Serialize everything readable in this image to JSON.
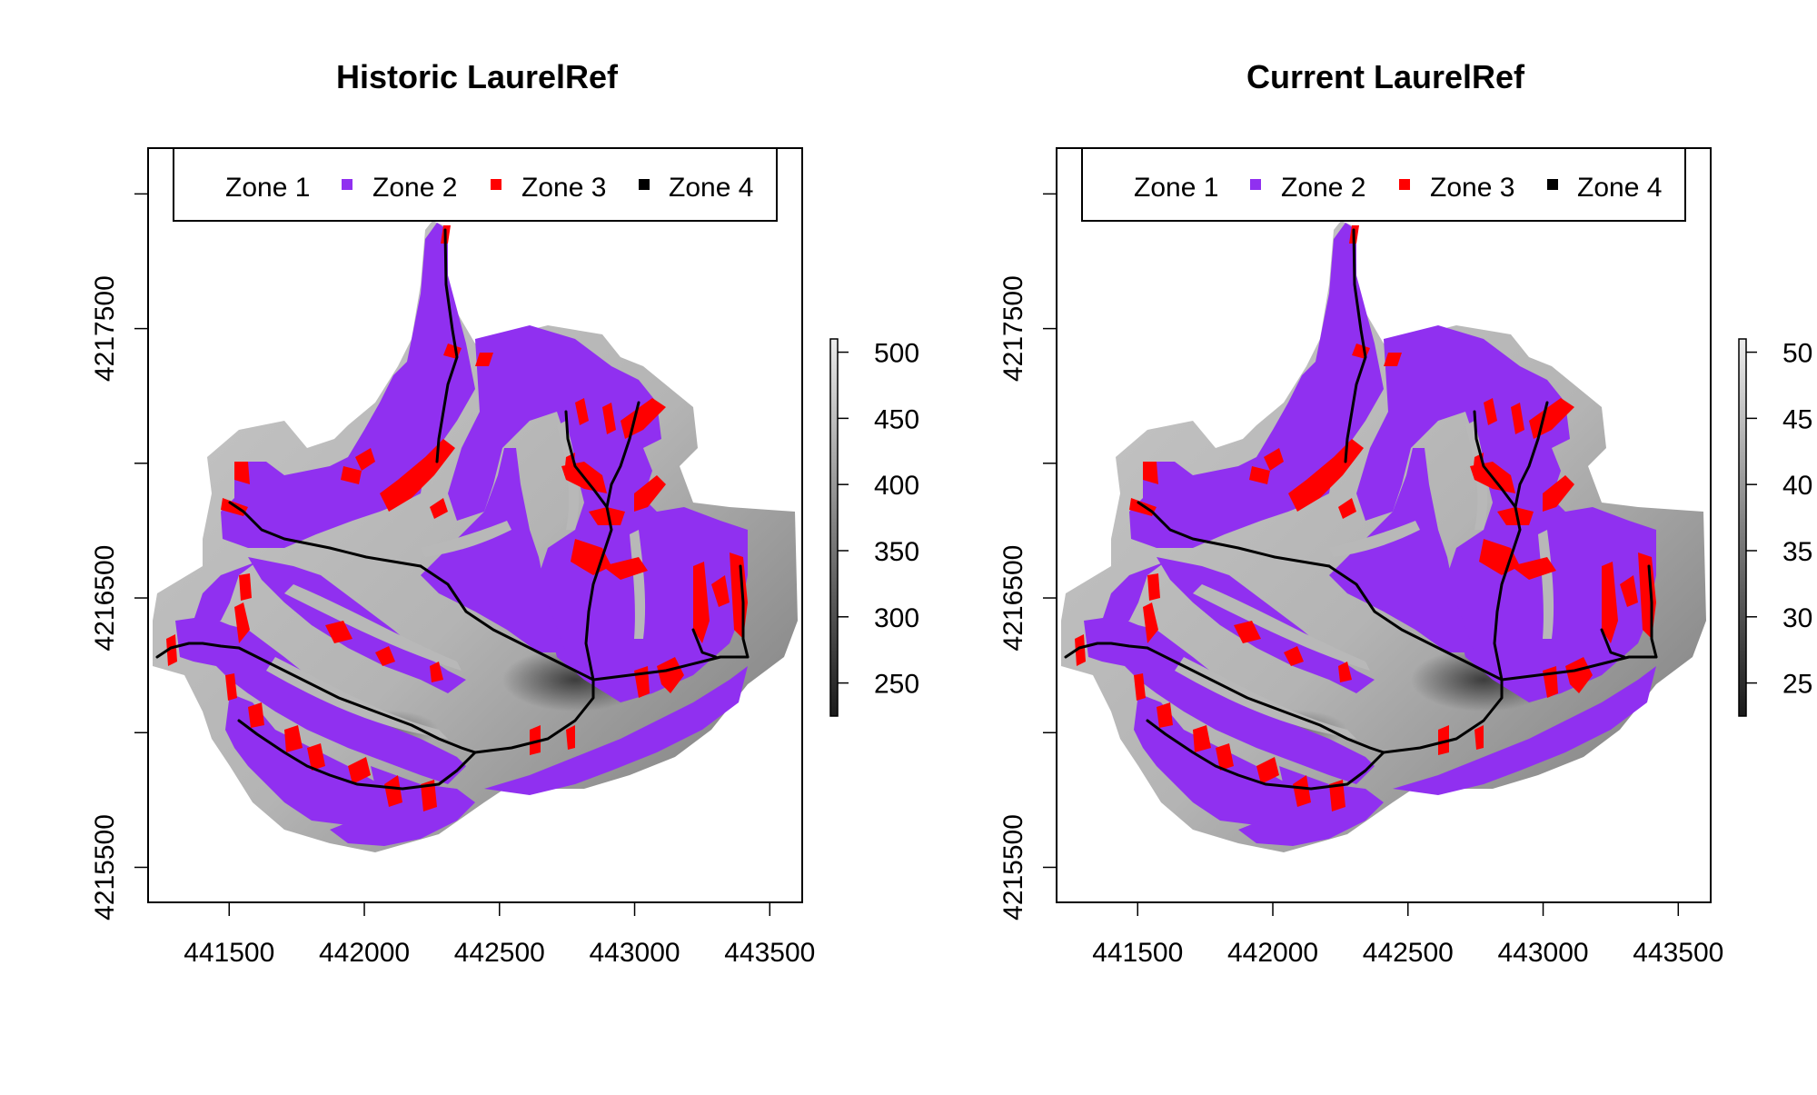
{
  "legend": {
    "zones": [
      {
        "label": "Zone 1",
        "color": "#ffffff"
      },
      {
        "label": "Zone 2",
        "color": "#9030f0"
      },
      {
        "label": "Zone 3",
        "color": "#ff0000"
      },
      {
        "label": "Zone 4",
        "color": "#000000"
      }
    ]
  },
  "colorbar": {
    "ticks": [
      "500",
      "450",
      "400",
      "350",
      "300",
      "250"
    ],
    "values": [
      500,
      450,
      400,
      350,
      300,
      250
    ],
    "range": [
      225,
      510
    ],
    "tick_labels_right_panel": [
      "50",
      "45",
      "40",
      "35",
      "30",
      "25"
    ]
  },
  "chart_data": [
    {
      "type": "heatmap",
      "title": "Historic LaurelRef",
      "xlabel": "",
      "ylabel": "",
      "x_ticks": [
        441500,
        442000,
        442500,
        443000,
        443500
      ],
      "y_ticks": [
        4215500,
        4216500,
        4217500
      ],
      "xlim": [
        441200,
        443620
      ],
      "ylim": [
        4215370,
        4218170
      ],
      "series": [
        {
          "name": "Zone 1",
          "color": "#ffffff"
        },
        {
          "name": "Zone 2",
          "color": "#9030f0"
        },
        {
          "name": "Zone 3",
          "color": "#ff0000"
        },
        {
          "name": "Zone 4",
          "color": "#000000"
        }
      ]
    },
    {
      "type": "heatmap",
      "title": "Current LaurelRef",
      "xlabel": "",
      "ylabel": "",
      "x_ticks": [
        441500,
        442000,
        442500,
        443000,
        443500
      ],
      "y_ticks": [
        4215500,
        4216500,
        4217500
      ],
      "xlim": [
        441200,
        443620
      ],
      "ylim": [
        4215370,
        4218170
      ],
      "series": [
        {
          "name": "Zone 1",
          "color": "#ffffff"
        },
        {
          "name": "Zone 2",
          "color": "#9030f0"
        },
        {
          "name": "Zone 3",
          "color": "#ff0000"
        },
        {
          "name": "Zone 4",
          "color": "#000000"
        }
      ]
    }
  ]
}
